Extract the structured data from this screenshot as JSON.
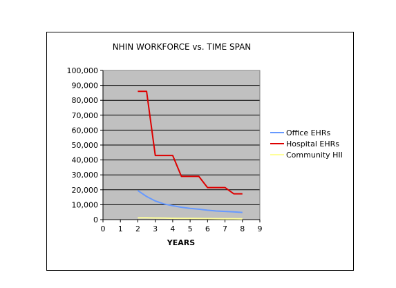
{
  "chart_data": {
    "type": "line",
    "title": "NHIN WORKFORCE vs. TIME SPAN",
    "xlabel": "YEARS",
    "ylabel": "",
    "xlim": [
      0,
      9
    ],
    "ylim": [
      0,
      100000
    ],
    "x_ticks": [
      "0",
      "1",
      "2",
      "3",
      "4",
      "5",
      "6",
      "7",
      "8",
      "9"
    ],
    "y_ticks": [
      "0",
      "10,000",
      "20,000",
      "30,000",
      "40,000",
      "50,000",
      "60,000",
      "70,000",
      "80,000",
      "90,000",
      "100,000"
    ],
    "grid": true,
    "legend_position": "right",
    "plot_background": "#c0c0c0",
    "series": [
      {
        "name": "Office EHRs",
        "color": "#6699ff",
        "x": [
          2,
          2.5,
          3,
          3.5,
          4,
          4.5,
          5,
          5.5,
          6,
          6.5,
          7,
          7.5,
          8
        ],
        "y": [
          19500,
          15500,
          12500,
          10500,
          9300,
          8300,
          7500,
          7000,
          6300,
          5800,
          5500,
          5200,
          4800
        ]
      },
      {
        "name": "Hospital EHRs",
        "color": "#dd0000",
        "x": [
          2,
          2.5,
          3,
          3.5,
          4,
          4.5,
          5,
          5.5,
          6,
          6.5,
          7,
          7.5,
          8
        ],
        "y": [
          86000,
          86000,
          43000,
          43000,
          43000,
          29000,
          29000,
          29000,
          21500,
          21500,
          21500,
          17300,
          17300
        ]
      },
      {
        "name": "Community HII",
        "color": "#ffff99",
        "x": [
          2,
          2.5,
          3,
          3.5,
          4,
          4.5,
          5,
          5.5,
          6,
          6.5,
          7,
          7.5,
          8
        ],
        "y": [
          1200,
          1200,
          1100,
          1000,
          900,
          850,
          800,
          750,
          700,
          650,
          600,
          550,
          500
        ]
      }
    ]
  }
}
